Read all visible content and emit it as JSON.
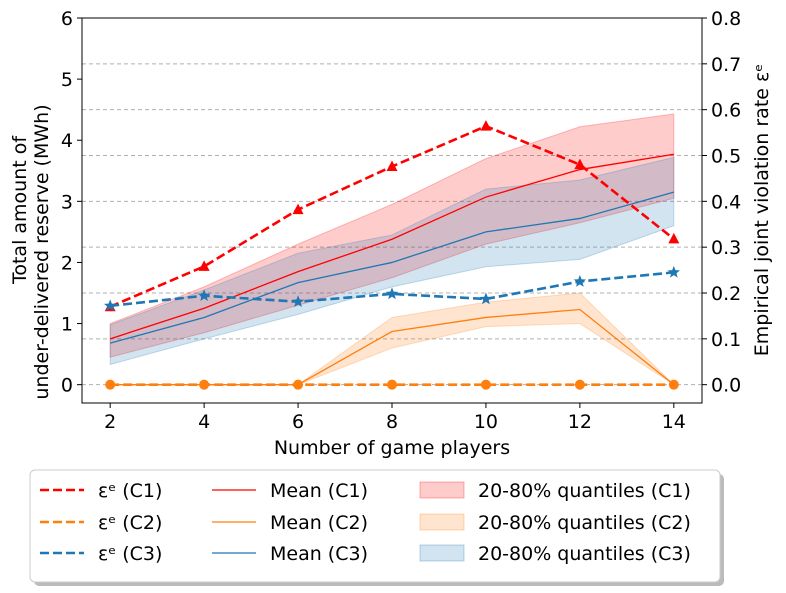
{
  "chart_data": {
    "type": "line",
    "x": [
      2,
      4,
      6,
      8,
      10,
      12,
      14
    ],
    "xlabel": "Number of game players",
    "ylabel_left": [
      "Total amount of",
      "under-delivered reserve (MWh)"
    ],
    "ylabel_right": "Empirical joint violation rate εᵉ",
    "xlim": [
      1.4,
      14.6
    ],
    "ylim_left": [
      -0.3,
      6
    ],
    "ylim_right": [
      -0.04,
      0.8
    ],
    "xticks": [
      "2",
      "4",
      "6",
      "8",
      "10",
      "12",
      "14"
    ],
    "yticks_left": [
      "0",
      "1",
      "2",
      "3",
      "4",
      "5",
      "6"
    ],
    "yticks_right": [
      "0.0",
      "0.1",
      "0.2",
      "0.3",
      "0.4",
      "0.5",
      "0.6",
      "0.7",
      "0.8"
    ],
    "grid": "right axis, horizontal dashed",
    "legend_position": "below plot",
    "violation_series": [
      {
        "name": "εᵉ (C1)",
        "axis": "right",
        "color": "#ff0000",
        "marker": "triangle",
        "values": [
          0.17,
          0.258,
          0.382,
          0.476,
          0.564,
          0.48,
          0.318
        ]
      },
      {
        "name": "εᵉ (C2)",
        "axis": "right",
        "color": "#ff7f0e",
        "marker": "circle",
        "values": [
          0.0,
          0.0,
          0.0,
          0.0,
          0.0,
          0.0,
          0.0
        ]
      },
      {
        "name": "εᵉ (C3)",
        "axis": "right",
        "color": "#1f77b4",
        "marker": "star",
        "values": [
          0.172,
          0.194,
          0.181,
          0.198,
          0.187,
          0.225,
          0.245
        ]
      }
    ],
    "mean_series": [
      {
        "name": "Mean (C1)",
        "axis": "left",
        "color": "#ff0000",
        "values": [
          0.75,
          1.25,
          1.85,
          2.38,
          3.07,
          3.52,
          3.77
        ]
      },
      {
        "name": "Mean (C2)",
        "axis": "left",
        "color": "#ff7f0e",
        "values": [
          0.0,
          0.0,
          0.0,
          0.87,
          1.1,
          1.23,
          0.0
        ]
      },
      {
        "name": "Mean (C3)",
        "axis": "left",
        "color": "#1f77b4",
        "values": [
          0.68,
          1.1,
          1.67,
          2.0,
          2.5,
          2.72,
          3.15
        ]
      }
    ],
    "quantile_series": [
      {
        "name": "20-80% quantiles (C1)",
        "axis": "left",
        "color": "#ff0000",
        "lower": [
          0.45,
          0.85,
          1.3,
          1.75,
          2.3,
          2.65,
          3.05
        ],
        "upper": [
          1.0,
          1.6,
          2.3,
          2.95,
          3.7,
          4.22,
          4.43
        ]
      },
      {
        "name": "20-80% quantiles (C2)",
        "axis": "left",
        "color": "#ff7f0e",
        "lower": [
          0.0,
          0.0,
          0.0,
          0.6,
          0.95,
          1.0,
          0.0
        ],
        "upper": [
          0.0,
          0.0,
          0.0,
          1.1,
          1.35,
          1.5,
          0.0
        ]
      },
      {
        "name": "20-80% quantiles (C3)",
        "axis": "left",
        "color": "#1f77b4",
        "lower": [
          0.33,
          0.75,
          1.15,
          1.6,
          1.93,
          2.05,
          2.6
        ],
        "upper": [
          0.98,
          1.55,
          2.15,
          2.45,
          3.2,
          3.35,
          3.72
        ]
      }
    ]
  }
}
